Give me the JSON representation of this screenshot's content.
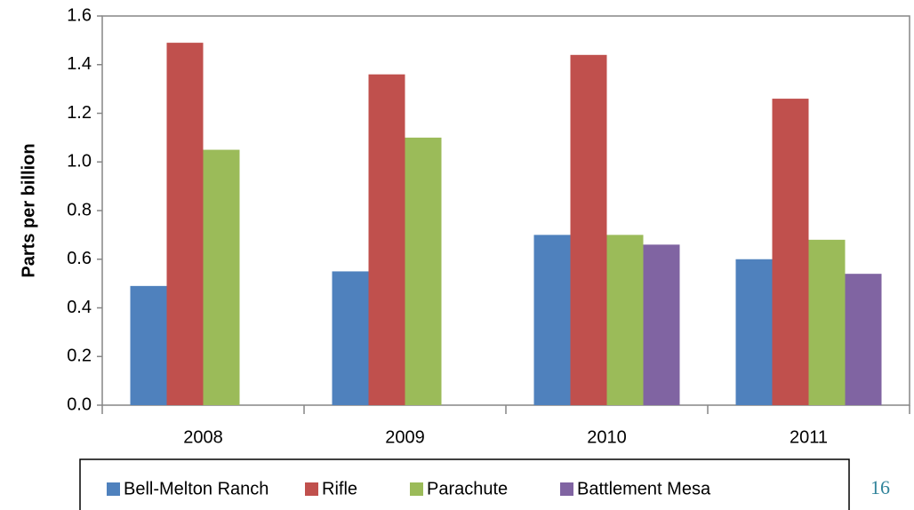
{
  "chart_data": {
    "type": "bar",
    "y_label": "Parts per billion",
    "categories": [
      "2008",
      "2009",
      "2010",
      "2011"
    ],
    "series": [
      {
        "name": "Bell-Melton Ranch",
        "color": "#4f81bd",
        "values": [
          0.49,
          0.55,
          0.7,
          0.6
        ]
      },
      {
        "name": "Rifle",
        "color": "#c0504d",
        "values": [
          1.49,
          1.36,
          1.44,
          1.26
        ]
      },
      {
        "name": "Parachute",
        "color": "#9bbb59",
        "values": [
          1.05,
          1.1,
          0.7,
          0.68
        ]
      },
      {
        "name": "Battlement Mesa",
        "color": "#8064a2",
        "values": [
          null,
          null,
          0.66,
          0.54
        ]
      }
    ],
    "ylim": [
      0,
      1.6
    ],
    "yticks": [
      {
        "value": 0,
        "label": "0.0"
      },
      {
        "value": 0.2,
        "label": "0.2"
      },
      {
        "value": 0.4,
        "label": "0.4"
      },
      {
        "value": 0.6,
        "label": "0.6"
      },
      {
        "value": 0.8,
        "label": "0.8"
      },
      {
        "value": 1.0,
        "label": "1.0"
      },
      {
        "value": 1.2,
        "label": "1.2"
      },
      {
        "value": 1.4,
        "label": "1.4"
      },
      {
        "value": 1.6,
        "label": "1.6"
      }
    ],
    "grid": false,
    "legend": "bottom"
  },
  "page_number": "16"
}
